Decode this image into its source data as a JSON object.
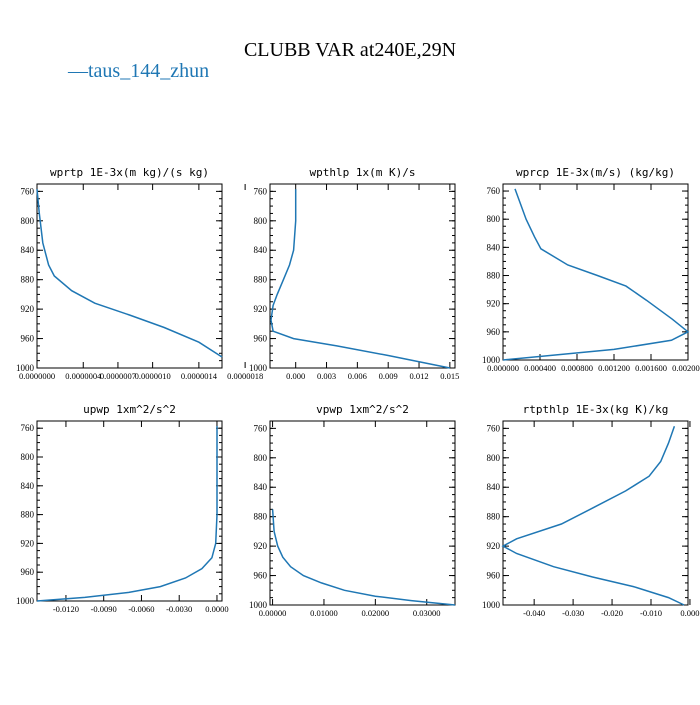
{
  "title": "CLUBB VAR at240E,29N",
  "legend": {
    "glyph": "—",
    "label": "taus_144_zhun",
    "color": "#1f77b4"
  },
  "chart_data": [
    {
      "type": "line",
      "title": "wprtp  1E-3x(m kg)/(s kg)",
      "xlim": [
        0,
        1.6e-06
      ],
      "ylim": [
        1000,
        750
      ],
      "xticks": [
        "0.0000000",
        "0.0000004",
        "0.0000007",
        "0.0000010",
        "0.0000014",
        "0.0000018"
      ],
      "yticks": [
        "760",
        "800",
        "840",
        "880",
        "920",
        "960",
        "1000"
      ],
      "series": [
        {
          "color": "#1f77b4",
          "x": [
            0.0,
            2e-08,
            5e-08,
            1e-07,
            1.5e-07,
            3e-07,
            5e-07,
            8e-07,
            1.1e-06,
            1.4e-06,
            1.6e-06
          ],
          "y": [
            757,
            790,
            830,
            860,
            875,
            895,
            912,
            928,
            945,
            965,
            985
          ]
        }
      ]
    },
    {
      "type": "line",
      "title": "wpthlp  1x(m K)/s",
      "xlim": [
        -0.0025,
        0.0155
      ],
      "ylim": [
        1000,
        750
      ],
      "xticks": [
        "0.000",
        "0.003",
        "0.006",
        "0.009",
        "0.012",
        "0.015"
      ],
      "yticks": [
        "760",
        "800",
        "840",
        "880",
        "920",
        "960",
        "1000"
      ],
      "series": [
        {
          "color": "#1f77b4",
          "x": [
            0.0,
            0.0,
            -0.0002,
            -0.0006,
            -0.0012,
            -0.0018,
            -0.0022,
            -0.0024,
            -0.0022,
            -0.0002,
            0.004,
            0.009,
            0.015
          ],
          "y": [
            757,
            800,
            840,
            860,
            880,
            900,
            915,
            935,
            950,
            960,
            970,
            983,
            1000
          ]
        }
      ]
    },
    {
      "type": "line",
      "title": "wprcp  1E-3x(m/s) (kg/kg)",
      "xlim": [
        0,
        0.002
      ],
      "ylim": [
        1000,
        750
      ],
      "xticks": [
        "0.000000",
        "0.000400",
        "0.000800",
        "0.001200",
        "0.001600",
        "0.002000"
      ],
      "yticks": [
        "760",
        "800",
        "840",
        "880",
        "920",
        "960",
        "1000"
      ],
      "series": [
        {
          "color": "#1f77b4",
          "x": [
            0.00013,
            0.00025,
            0.00034,
            0.00041,
            0.0007,
            0.00102,
            0.00133,
            0.00155,
            0.00183,
            0.002,
            0.00182,
            0.0012,
            0.00055,
            0.0
          ],
          "y": [
            757,
            800,
            825,
            842,
            865,
            880,
            895,
            915,
            942,
            960,
            972,
            985,
            993,
            1000
          ]
        }
      ]
    },
    {
      "type": "line",
      "title": "upwp  1xm^2/s^2",
      "xlim": [
        -0.0143,
        0.0004
      ],
      "ylim": [
        1000,
        750
      ],
      "xticks": [
        "-0.0120",
        "-0.0090",
        "-0.0060",
        "-0.0030",
        "0.0000"
      ],
      "yticks": [
        "760",
        "800",
        "840",
        "880",
        "920",
        "960",
        "1000"
      ],
      "series": [
        {
          "color": "#1f77b4",
          "x": [
            0.0,
            0.0,
            -0.0001,
            -0.0004,
            -0.0012,
            -0.0025,
            -0.0045,
            -0.007,
            -0.0105,
            -0.0143
          ],
          "y": [
            757,
            880,
            920,
            940,
            955,
            968,
            980,
            988,
            995,
            1000
          ]
        }
      ]
    },
    {
      "type": "line",
      "title": "vpwp  1xm^2/s^2",
      "xlim": [
        -0.0005,
        0.0355
      ],
      "ylim": [
        1000,
        750
      ],
      "xticks": [
        "0.00000",
        "0.01000",
        "0.02000",
        "0.03000"
      ],
      "yticks": [
        "760",
        "800",
        "840",
        "880",
        "920",
        "960",
        "1000"
      ],
      "series": [
        {
          "color": "#1f77b4",
          "x": [
            0.0,
            0.0003,
            0.001,
            0.002,
            0.0035,
            0.006,
            0.0095,
            0.014,
            0.02,
            0.027,
            0.0355
          ],
          "y": [
            870,
            900,
            920,
            935,
            948,
            960,
            970,
            980,
            988,
            994,
            1000
          ]
        }
      ]
    },
    {
      "type": "line",
      "title": "rtpthlp  1E-3x(kg K)/kg",
      "xlim": [
        -0.048,
        -0.0005
      ],
      "ylim": [
        1000,
        750
      ],
      "xticks": [
        "-0.040",
        "-0.030",
        "-0.020",
        "-0.010",
        "0.000"
      ],
      "yticks": [
        "760",
        "800",
        "840",
        "880",
        "920",
        "960",
        "1000"
      ],
      "series": [
        {
          "color": "#1f77b4",
          "x": [
            -0.004,
            -0.0055,
            -0.0075,
            -0.0105,
            -0.0165,
            -0.0245,
            -0.033,
            -0.0445,
            -0.048,
            -0.0445,
            -0.035,
            -0.025,
            -0.0145,
            -0.0055,
            -0.0015
          ],
          "y": [
            757,
            780,
            805,
            825,
            845,
            867,
            890,
            910,
            920,
            930,
            948,
            962,
            975,
            990,
            1000
          ]
        }
      ]
    }
  ]
}
